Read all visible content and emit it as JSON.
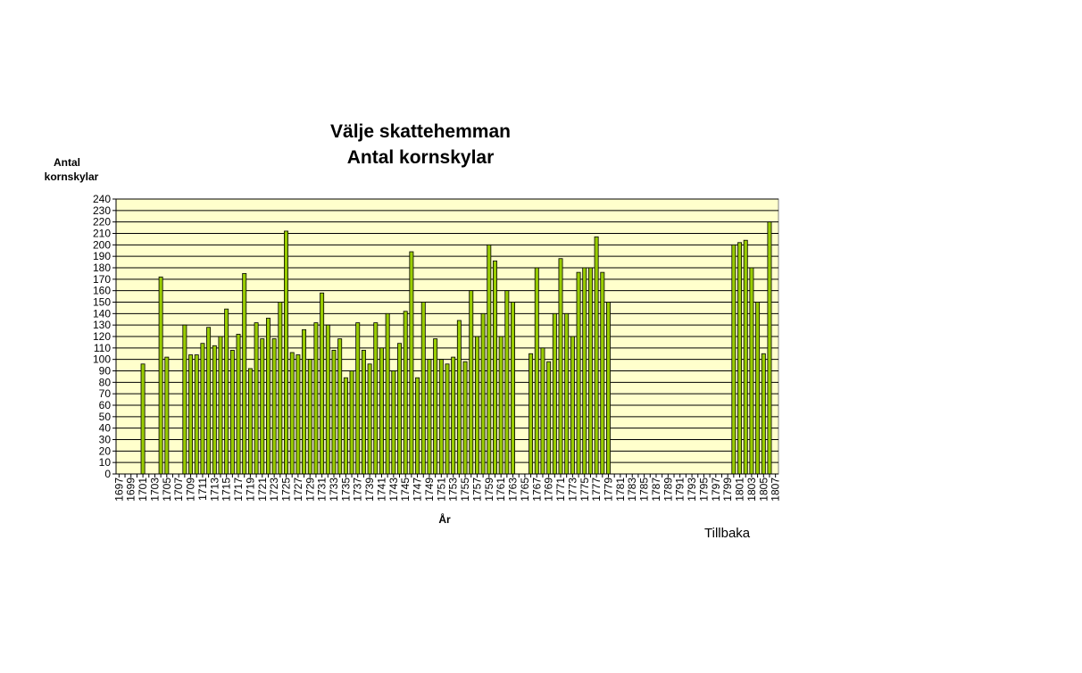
{
  "back_link": {
    "label": "Tillbaka"
  },
  "chart_data": {
    "type": "bar",
    "title_lines": [
      "Välje skattehemman",
      "Antal kornskylar"
    ],
    "ylabel_lines": [
      "Antal",
      "kornskylar"
    ],
    "xlabel": "År",
    "ylim": [
      0,
      240
    ],
    "ytick_step": 10,
    "xtick_step": 2,
    "grid": true,
    "legend": "none",
    "colors": {
      "bar_fill": "#99CC00",
      "bar_stroke": "#000000",
      "plot_bg": "#FFFFCC",
      "grid": "#000000"
    },
    "categories": [
      1697,
      1698,
      1699,
      1700,
      1701,
      1702,
      1703,
      1704,
      1705,
      1706,
      1707,
      1708,
      1709,
      1710,
      1711,
      1712,
      1713,
      1714,
      1715,
      1716,
      1717,
      1718,
      1719,
      1720,
      1721,
      1722,
      1723,
      1724,
      1725,
      1726,
      1727,
      1728,
      1729,
      1730,
      1731,
      1732,
      1733,
      1734,
      1735,
      1736,
      1737,
      1738,
      1739,
      1740,
      1741,
      1742,
      1743,
      1744,
      1745,
      1746,
      1747,
      1748,
      1749,
      1750,
      1751,
      1752,
      1753,
      1754,
      1755,
      1756,
      1757,
      1758,
      1759,
      1760,
      1761,
      1762,
      1763,
      1764,
      1765,
      1766,
      1767,
      1768,
      1769,
      1770,
      1771,
      1772,
      1773,
      1774,
      1775,
      1776,
      1777,
      1778,
      1779,
      1780,
      1781,
      1782,
      1783,
      1784,
      1785,
      1786,
      1787,
      1788,
      1789,
      1790,
      1791,
      1792,
      1793,
      1794,
      1795,
      1796,
      1797,
      1798,
      1799,
      1800,
      1801,
      1802,
      1803,
      1804,
      1805,
      1806,
      1807
    ],
    "values": [
      null,
      null,
      null,
      null,
      96,
      null,
      null,
      172,
      102,
      null,
      null,
      130,
      104,
      104,
      114,
      128,
      112,
      120,
      144,
      108,
      122,
      175,
      92,
      132,
      118,
      136,
      118,
      150,
      212,
      106,
      104,
      126,
      100,
      132,
      158,
      130,
      108,
      118,
      84,
      90,
      132,
      108,
      96,
      132,
      110,
      140,
      90,
      114,
      142,
      194,
      84,
      150,
      100,
      118,
      100,
      96,
      102,
      134,
      98,
      160,
      120,
      140,
      200,
      186,
      120,
      160,
      150,
      null,
      null,
      105,
      180,
      110,
      98,
      140,
      188,
      140,
      120,
      176,
      180,
      180,
      207,
      176,
      150,
      null,
      null,
      null,
      null,
      null,
      null,
      null,
      null,
      null,
      null,
      null,
      null,
      null,
      null,
      null,
      null,
      null,
      null,
      null,
      null,
      200,
      202,
      204,
      180,
      150,
      105,
      220,
      null
    ]
  }
}
